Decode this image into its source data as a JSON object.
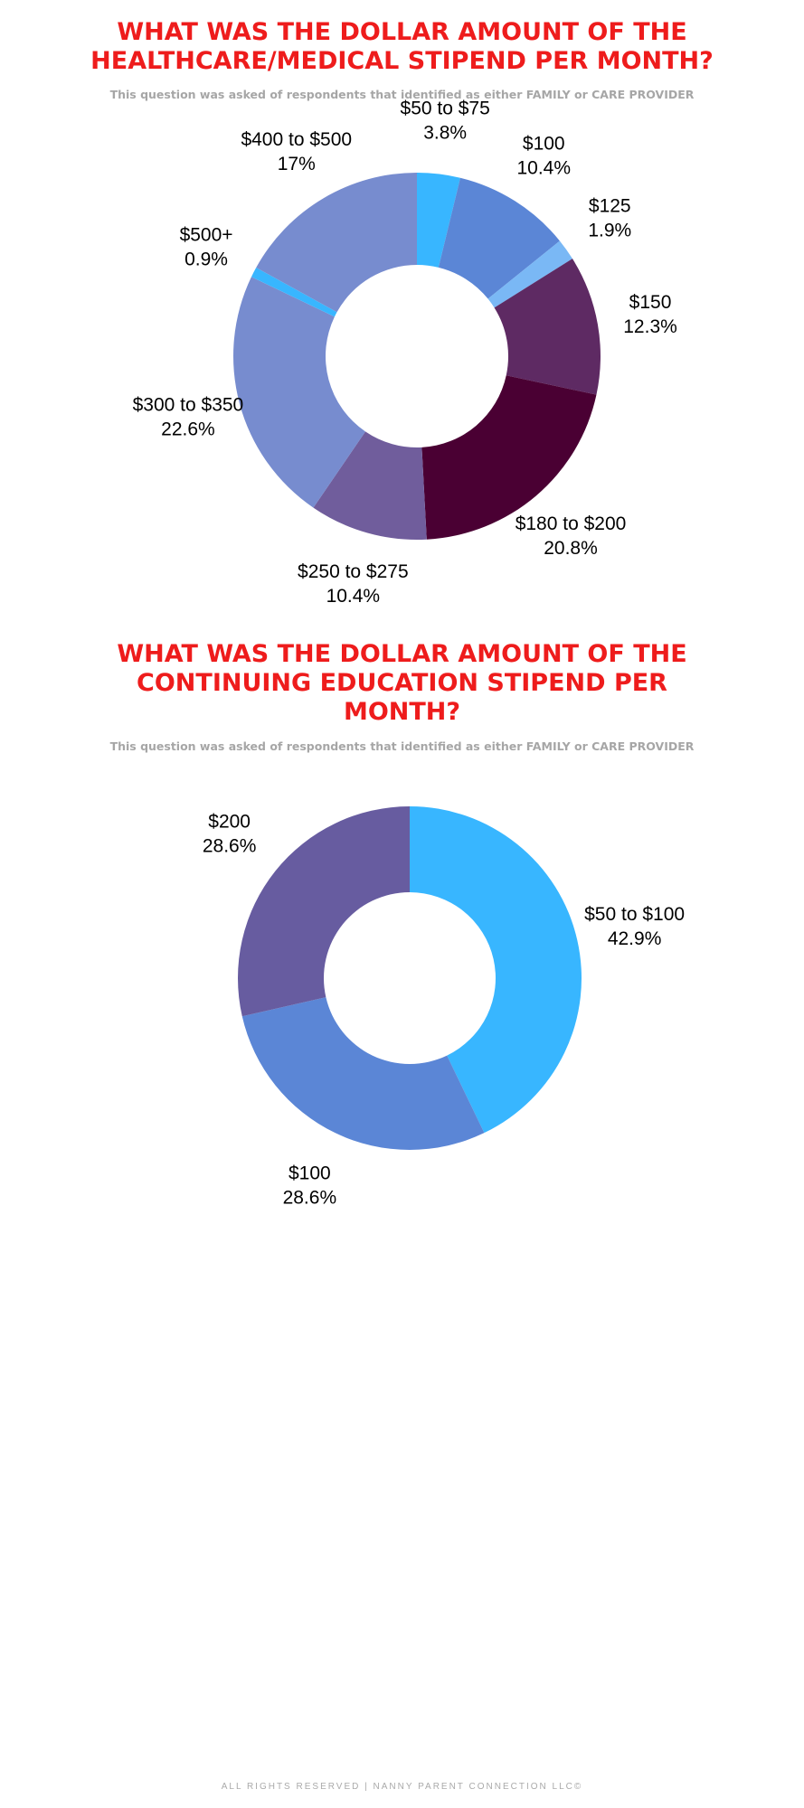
{
  "chart_data": [
    {
      "type": "pie",
      "title": "WHAT WAS THE DOLLAR AMOUNT OF THE HEALTHCARE/MEDICAL STIPEND PER MONTH?",
      "subtitle": "This question was asked of respondents that identified as either FAMILY or CARE PROVIDER",
      "categories": [
        "$50 to $75",
        "$100",
        "$125",
        "$150",
        "$180 to $200",
        "$250 to $275",
        "$300 to $350",
        "$500+",
        "$400 to $500"
      ],
      "values": [
        3.8,
        10.4,
        1.9,
        12.3,
        20.8,
        10.4,
        22.6,
        0.9,
        17
      ],
      "value_labels": [
        "3.8%",
        "10.4%",
        "1.9%",
        "12.3%",
        "20.8%",
        "10.4%",
        "22.6%",
        "0.9%",
        "17%"
      ],
      "colors": [
        "#38b6ff",
        "#5b86d6",
        "#7ab8f5",
        "#5e2a63",
        "#4a0033",
        "#705d9c",
        "#778ccf",
        "#38b6ff",
        "#778ccf"
      ]
    },
    {
      "type": "pie",
      "title": "WHAT WAS THE DOLLAR AMOUNT OF THE CONTINUING EDUCATION STIPEND PER MONTH?",
      "subtitle": "This question was asked of respondents that identified as either FAMILY or CARE PROVIDER",
      "categories": [
        "$50 to $100",
        "$100",
        "$200"
      ],
      "values": [
        42.9,
        28.6,
        28.6
      ],
      "value_labels": [
        "42.9%",
        "28.6%",
        "28.6%"
      ],
      "colors": [
        "#38b6ff",
        "#5b86d6",
        "#675ca0"
      ]
    }
  ],
  "footer": "ALL RIGHTS RESERVED | NANNY PARENT CONNECTION LLC©"
}
